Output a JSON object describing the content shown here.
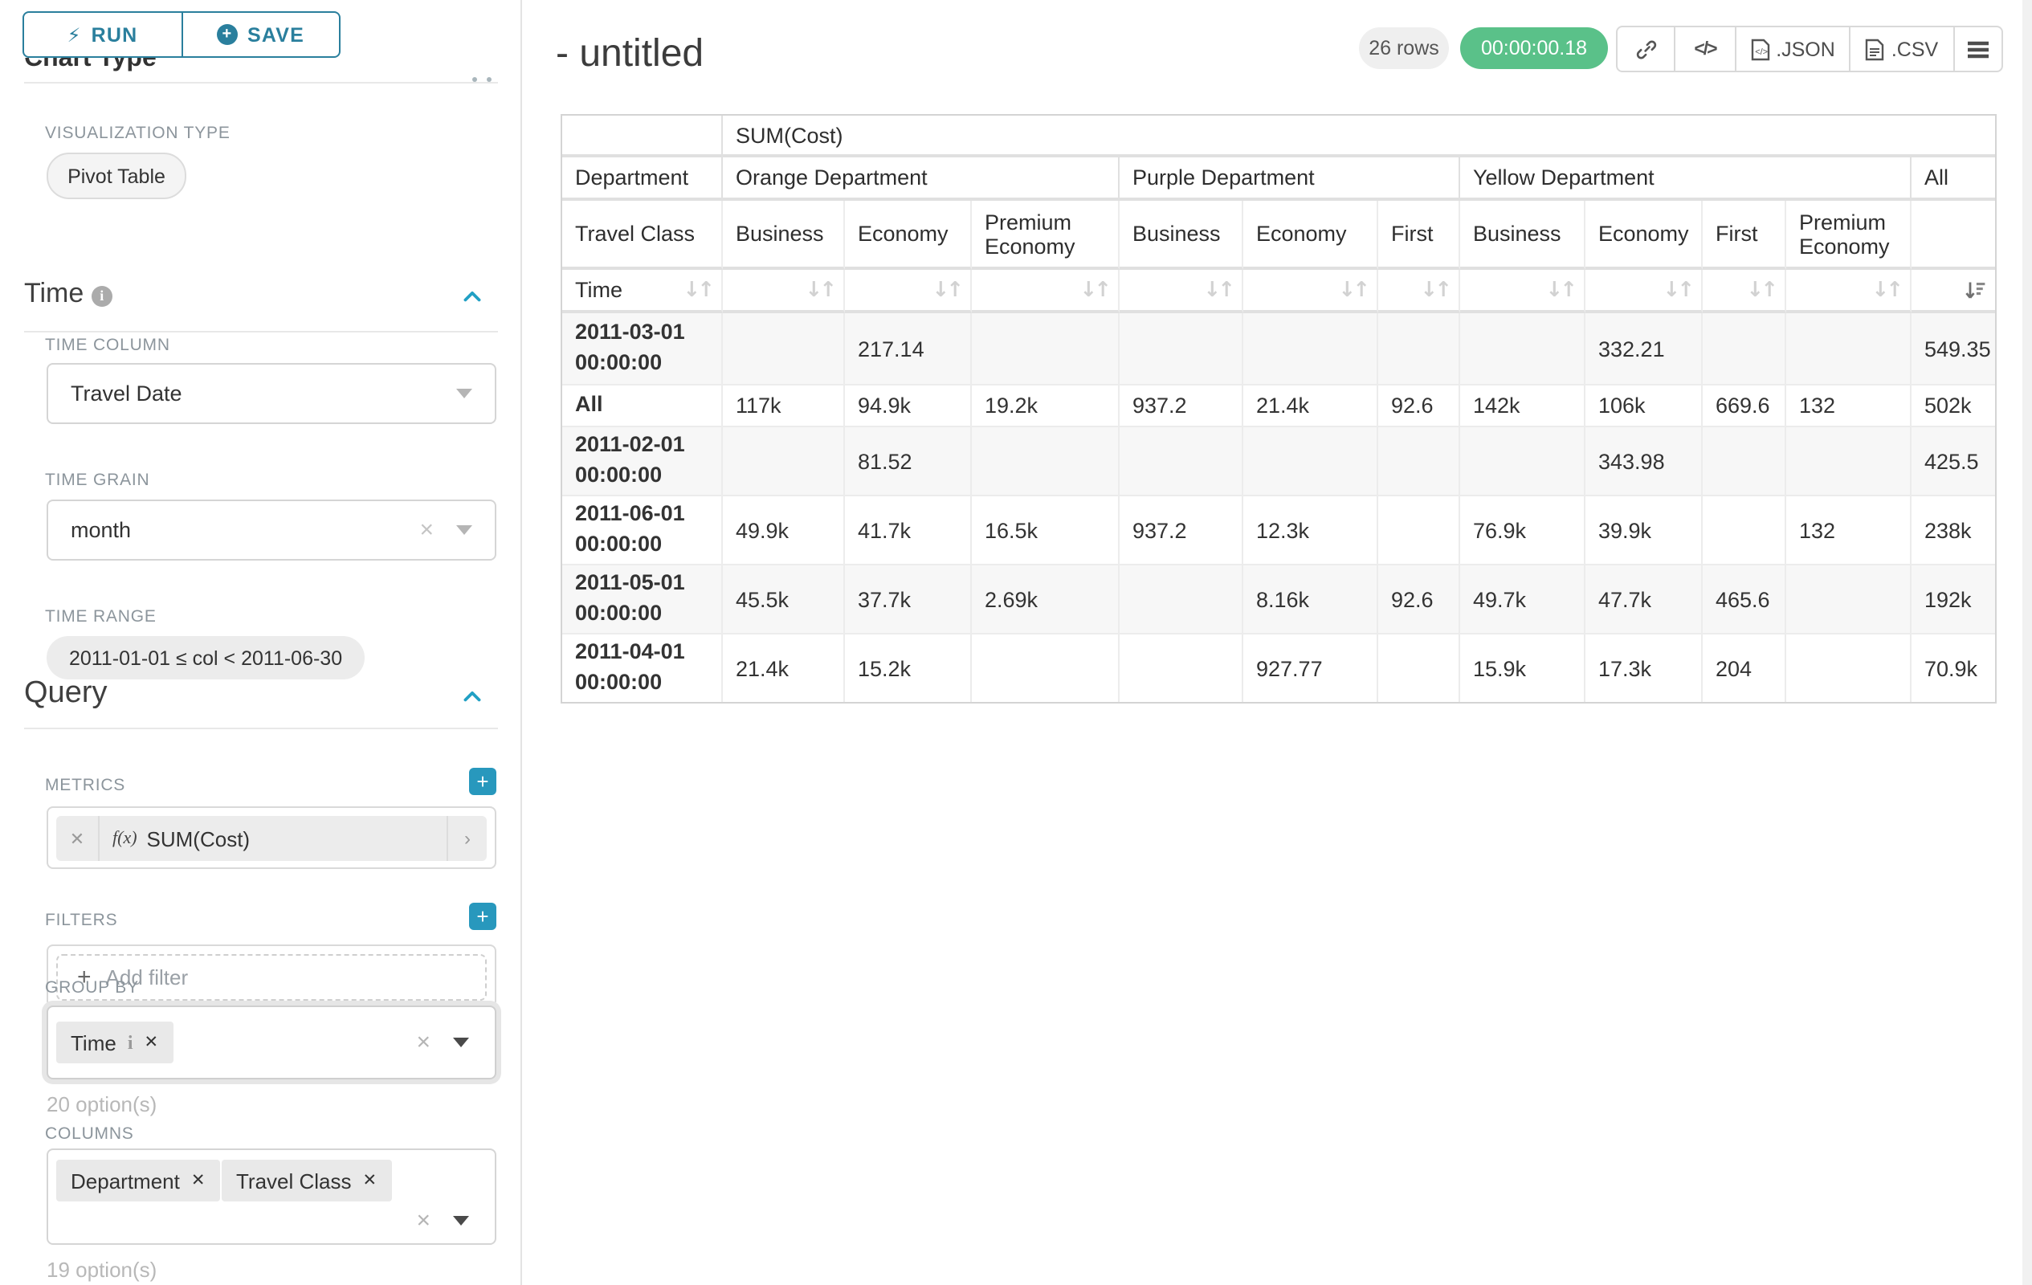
{
  "sidebar": {
    "panel_title": "Chart Type",
    "run_label": "RUN",
    "save_label": "SAVE",
    "viz_type_label": "VISUALIZATION TYPE",
    "viz_type_value": "Pivot Table",
    "time_section": "Time",
    "time_column_label": "TIME COLUMN",
    "time_column_value": "Travel Date",
    "time_grain_label": "TIME GRAIN",
    "time_grain_value": "month",
    "time_range_label": "TIME RANGE",
    "time_range_value": "2011-01-01 ≤ col < 2011-06-30",
    "query_section": "Query",
    "metrics_label": "METRICS",
    "metric_fx": "f(x)",
    "metric_chip": "SUM(Cost)",
    "filters_label": "FILTERS",
    "add_filter_label": "Add filter",
    "group_by_label": "GROUP BY",
    "group_by_chip": "Time",
    "group_by_options": "20 option(s)",
    "columns_label": "COLUMNS",
    "columns_chips": [
      "Department",
      "Travel Class"
    ],
    "columns_options": "19 option(s)"
  },
  "header": {
    "title": "- untitled",
    "row_count": "26 rows",
    "timer": "00:00:00.18",
    "json_label": ".JSON",
    "csv_label": ".CSV"
  },
  "colors": {
    "accent_teal": "#20a7c9",
    "success_green": "#5ac189"
  },
  "chart_data": {
    "type": "table",
    "title": "SUM(Cost)",
    "metric": "SUM(Cost)",
    "row_dimension": "Time",
    "column_dimensions": [
      "Department",
      "Travel Class"
    ],
    "corner_labels": {
      "department": "Department",
      "travel_class": "Travel Class",
      "time": "Time"
    },
    "column_groups": [
      {
        "label": "Orange Department",
        "children": [
          "Business",
          "Economy",
          "Premium Economy"
        ]
      },
      {
        "label": "Purple Department",
        "children": [
          "Business",
          "Economy",
          "First"
        ]
      },
      {
        "label": "Yellow Department",
        "children": [
          "Business",
          "Economy",
          "First",
          "Premium Economy"
        ]
      },
      {
        "label": "All",
        "children": [
          ""
        ]
      }
    ],
    "sort": {
      "active_column_index": 10,
      "direction": "desc"
    },
    "rows": [
      {
        "label": "2011-03-01 00:00:00",
        "values": [
          "",
          "217.14",
          "",
          "",
          "",
          "",
          "",
          "332.21",
          "",
          "",
          "549.35"
        ]
      },
      {
        "label": "All",
        "values": [
          "117k",
          "94.9k",
          "19.2k",
          "937.2",
          "21.4k",
          "92.6",
          "142k",
          "106k",
          "669.6",
          "132",
          "502k"
        ]
      },
      {
        "label": "2011-02-01 00:00:00",
        "values": [
          "",
          "81.52",
          "",
          "",
          "",
          "",
          "",
          "343.98",
          "",
          "",
          "425.5"
        ]
      },
      {
        "label": "2011-06-01 00:00:00",
        "values": [
          "49.9k",
          "41.7k",
          "16.5k",
          "937.2",
          "12.3k",
          "",
          "76.9k",
          "39.9k",
          "",
          "132",
          "238k"
        ]
      },
      {
        "label": "2011-05-01 00:00:00",
        "values": [
          "45.5k",
          "37.7k",
          "2.69k",
          "",
          "8.16k",
          "92.6",
          "49.7k",
          "47.7k",
          "465.6",
          "",
          "192k"
        ]
      },
      {
        "label": "2011-04-01 00:00:00",
        "values": [
          "21.4k",
          "15.2k",
          "",
          "",
          "927.77",
          "",
          "15.9k",
          "17.3k",
          "204",
          "",
          "70.9k"
        ]
      }
    ]
  }
}
